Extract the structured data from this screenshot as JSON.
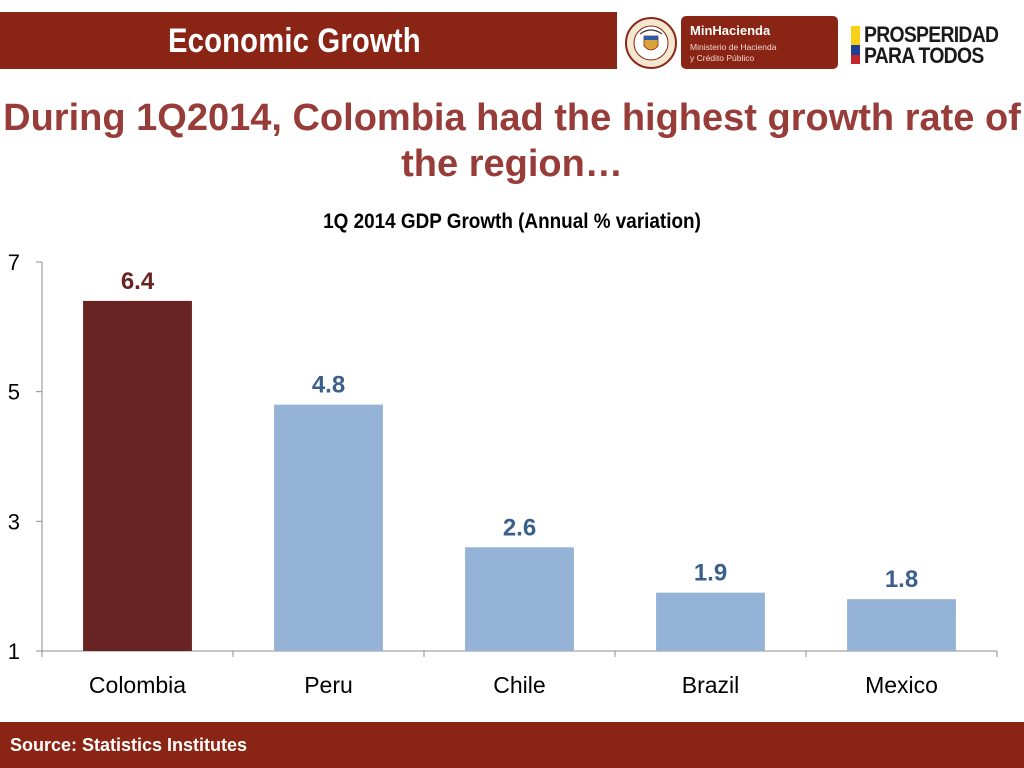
{
  "header": {
    "title": "Economic Growth",
    "ministry_name": "MinHacienda",
    "ministry_line1": "Ministerio de Hacienda",
    "ministry_line2": "y Crédito Público",
    "seal_text": "REPÚBLICA DE COLOMBIA",
    "slogan_line1": "PROSPERIDAD",
    "slogan_line2": "PARA TODOS"
  },
  "slide": {
    "title": "During 1Q2014, Colombia had the highest growth rate of the region…"
  },
  "chart_data": {
    "type": "bar",
    "title": "1Q 2014 GDP Growth (Annual % variation)",
    "xlabel": "",
    "ylabel": "",
    "categories": [
      "Colombia",
      "Peru",
      "Chile",
      "Brazil",
      "Mexico"
    ],
    "values": [
      6.4,
      4.8,
      2.6,
      1.9,
      1.8
    ],
    "data_labels": [
      "6.4",
      "4.8",
      "2.6",
      "1.9",
      "1.8"
    ],
    "ylim": [
      1,
      7
    ],
    "yticks": [
      1,
      3,
      5,
      7
    ],
    "ytick_labels": [
      "1",
      "3",
      "5",
      "7"
    ],
    "grid": false,
    "legend": "none",
    "colors": {
      "highlight": "#672422",
      "bar": "#95b3d7",
      "highlight_label": "#672422",
      "bar_label": "#3a5f8c"
    },
    "highlight_index": 0
  },
  "footer": {
    "source": "Source: Statistics Institutes"
  },
  "colors": {
    "brand": "#8a2414",
    "title": "#973c38"
  }
}
